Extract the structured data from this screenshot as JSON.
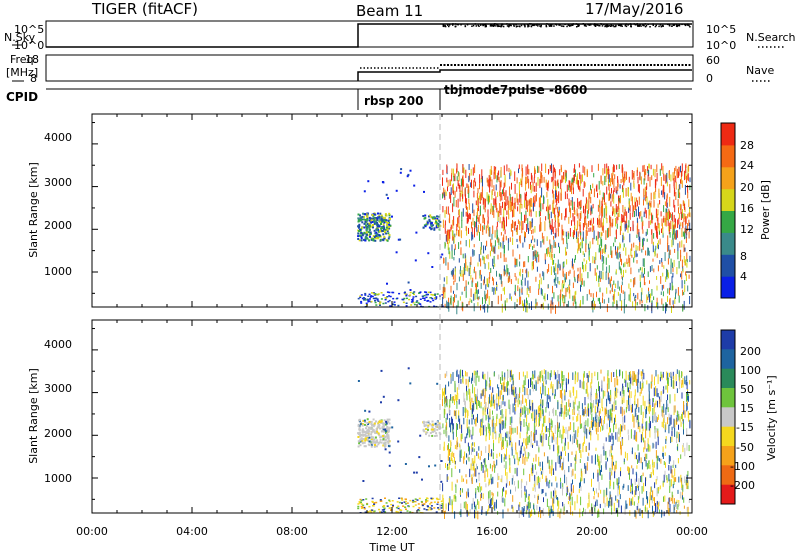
{
  "header": {
    "station": "TIGER (fitACF)",
    "beam": "Beam 11",
    "date": "17/May/2016"
  },
  "strip_labels": {
    "nsky": "N.Sky",
    "nsky_ticks": [
      "10^5",
      "10^0"
    ],
    "nsearch": "N.Search",
    "nsearch_ticks": [
      "10^5",
      "10^0"
    ],
    "freq_top": "Freq.",
    "freq_unit": "[MHz]",
    "freq_ticks": [
      "18",
      "8"
    ],
    "nave": "Nave",
    "nave_ticks": [
      "60",
      "0"
    ],
    "cpid": "CPID",
    "mode1": "rbsp 200",
    "mode2": "tbjmode7pulse -8600"
  },
  "colors": {
    "power": [
      "#0a1fe6",
      "#1f4fa6",
      "#3a8a8a",
      "#35a845",
      "#d6d61a",
      "#f5a21a",
      "#f56a14",
      "#ee2a14"
    ],
    "velocity": [
      "#1e3ca8",
      "#1e64a0",
      "#2a8a5a",
      "#6ec43c",
      "#c8c8c8",
      "#f5d81e",
      "#f5a21a",
      "#ee6a14",
      "#e41a1a"
    ]
  },
  "chart_data": [
    {
      "type": "heatmap",
      "name": "power",
      "xlabel": "",
      "ylabel": "Slant Range [km]",
      "ylim": [
        180,
        4700
      ],
      "xlim_hours": [
        0,
        24
      ],
      "yticks": [
        "1000",
        "2000",
        "3000",
        "4000"
      ],
      "colorbar": {
        "label": "Power [dB]",
        "ticks": [
          "4",
          "8",
          "12",
          "16",
          "20",
          "24",
          "28"
        ],
        "range": [
          0,
          32
        ]
      }
    },
    {
      "type": "heatmap",
      "name": "velocity",
      "xlabel": "Time UT",
      "ylabel": "Slant Range [km]",
      "ylim": [
        180,
        4700
      ],
      "xlim_hours": [
        0,
        24
      ],
      "xticks": [
        "00:00",
        "04:00",
        "08:00",
        "12:00",
        "16:00",
        "20:00",
        "00:00"
      ],
      "yticks": [
        "1000",
        "2000",
        "3000",
        "4000"
      ],
      "colorbar": {
        "label": "Velocity [m s⁻¹]",
        "ticks": [
          "200",
          "100",
          "50",
          "15",
          "-15",
          "-50",
          "-100",
          "-200"
        ]
      }
    }
  ]
}
